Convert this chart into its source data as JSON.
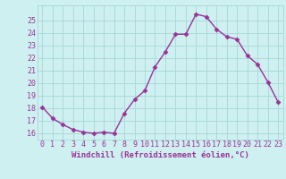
{
  "x": [
    0,
    1,
    2,
    3,
    4,
    5,
    6,
    7,
    8,
    9,
    10,
    11,
    12,
    13,
    14,
    15,
    16,
    17,
    18,
    19,
    20,
    21,
    22,
    23
  ],
  "y": [
    18.1,
    17.2,
    16.7,
    16.3,
    16.1,
    16.0,
    16.1,
    16.0,
    17.6,
    18.7,
    19.4,
    21.3,
    22.5,
    23.9,
    23.9,
    25.5,
    25.3,
    24.3,
    23.7,
    23.5,
    22.2,
    21.5,
    20.1,
    18.5
  ],
  "line_color": "#993399",
  "marker": "D",
  "marker_size": 2.5,
  "line_width": 1.0,
  "xlabel": "Windchill (Refroidissement éolien,°C)",
  "ylim": [
    15.5,
    26.2
  ],
  "xlim": [
    -0.5,
    23.5
  ],
  "yticks": [
    16,
    17,
    18,
    19,
    20,
    21,
    22,
    23,
    24,
    25
  ],
  "xtick_labels": [
    "0",
    "1",
    "2",
    "3",
    "4",
    "5",
    "6",
    "7",
    "8",
    "9",
    "10",
    "11",
    "12",
    "13",
    "14",
    "15",
    "16",
    "17",
    "18",
    "19",
    "20",
    "21",
    "22",
    "23"
  ],
  "background_color": "#cff0f0",
  "grid_color": "#aadada",
  "font_color": "#993399",
  "label_fontsize": 6.5,
  "tick_fontsize": 6.0
}
